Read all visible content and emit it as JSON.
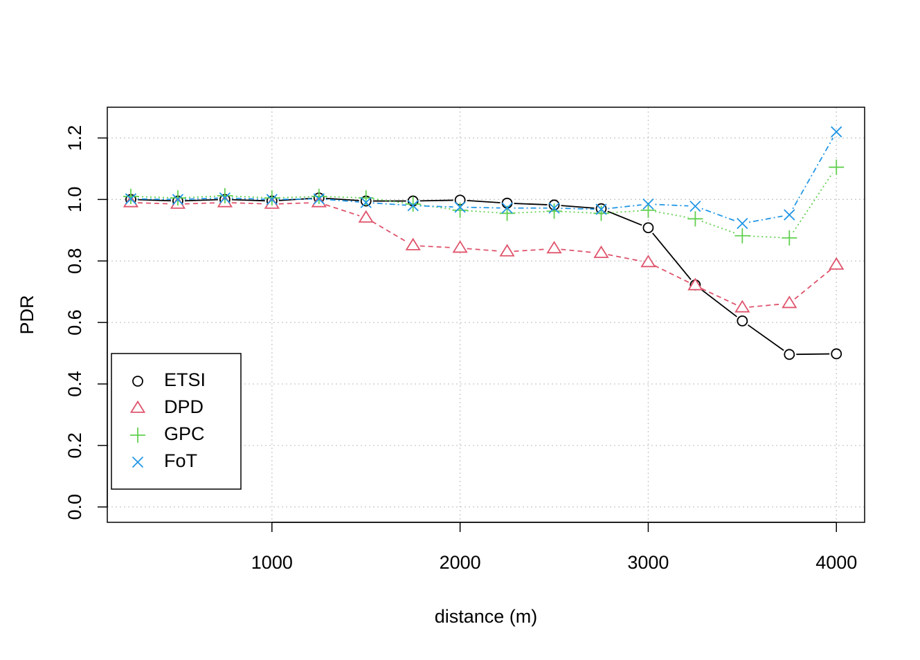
{
  "chart_data": {
    "type": "line",
    "title": "",
    "xlabel": "distance (m)",
    "ylabel": "PDR",
    "xlim": [
      125,
      4150
    ],
    "ylim": [
      -0.05,
      1.3
    ],
    "xticks": [
      1000,
      2000,
      3000,
      4000
    ],
    "yticks": [
      0.0,
      0.2,
      0.4,
      0.6,
      0.8,
      1.0,
      1.2
    ],
    "xtick_labels": [
      "1000",
      "2000",
      "3000",
      "4000"
    ],
    "ytick_labels": [
      "0.0",
      "0.2",
      "0.4",
      "0.6",
      "0.8",
      "1.0",
      "1.2"
    ],
    "grid": true,
    "legend_position": "bottom-left",
    "x": [
      250,
      500,
      750,
      1000,
      1250,
      1500,
      1750,
      2000,
      2250,
      2500,
      2750,
      3000,
      3250,
      3500,
      3750,
      4000
    ],
    "series": [
      {
        "name": "ETSI",
        "color": "#000000",
        "marker": "circle",
        "line_style": "solid",
        "values": [
          1.0,
          0.995,
          1.0,
          0.995,
          1.005,
          0.995,
          0.995,
          0.998,
          0.988,
          0.982,
          0.97,
          0.908,
          0.722,
          0.605,
          0.496,
          0.498
        ]
      },
      {
        "name": "DPD",
        "color": "#DF536B",
        "marker": "triangle",
        "line_style": "dashed",
        "values": [
          0.99,
          0.985,
          0.99,
          0.985,
          0.99,
          0.94,
          0.85,
          0.842,
          0.83,
          0.84,
          0.825,
          0.795,
          0.72,
          0.648,
          0.662,
          0.787
        ]
      },
      {
        "name": "GPC",
        "color": "#61D04F",
        "marker": "plus",
        "line_style": "dotted",
        "values": [
          1.01,
          1.005,
          1.012,
          1.005,
          1.01,
          1.005,
          0.985,
          0.965,
          0.955,
          0.962,
          0.955,
          0.965,
          0.937,
          0.882,
          0.875,
          1.105
        ]
      },
      {
        "name": "FoT",
        "color": "#2297E6",
        "marker": "x",
        "line_style": "dotdash",
        "values": [
          1.002,
          1.0,
          1.005,
          1.0,
          1.002,
          0.99,
          0.98,
          0.975,
          0.972,
          0.972,
          0.968,
          0.985,
          0.978,
          0.922,
          0.95,
          1.22
        ]
      }
    ]
  }
}
